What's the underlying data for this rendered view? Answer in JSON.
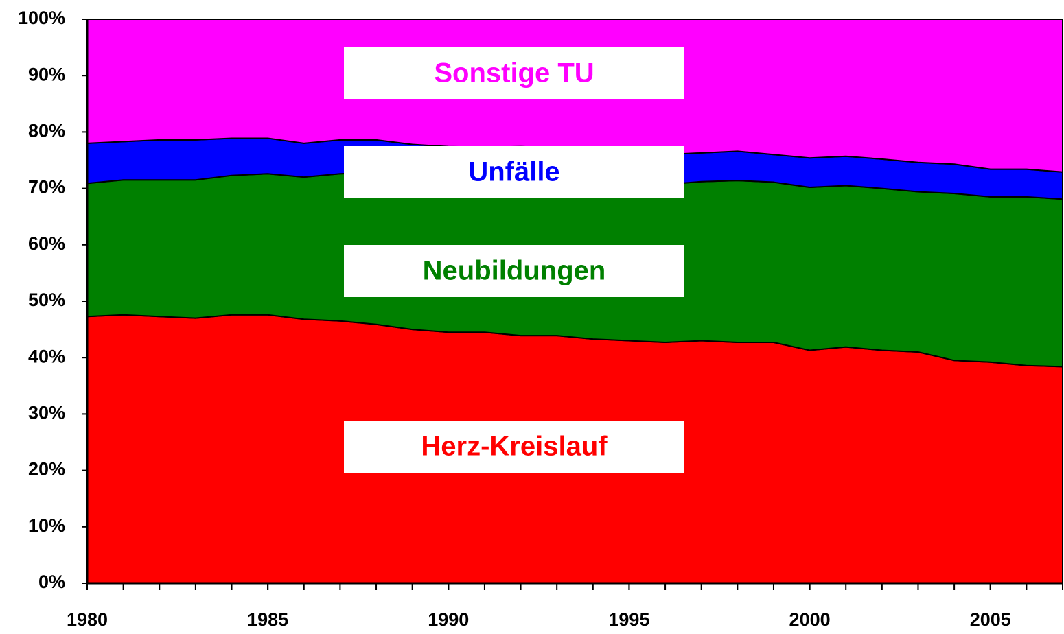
{
  "chart_data": {
    "type": "stacked_area",
    "x": [
      1980,
      1981,
      1982,
      1983,
      1984,
      1985,
      1986,
      1987,
      1988,
      1989,
      1990,
      1991,
      1992,
      1993,
      1994,
      1995,
      1996,
      1997,
      1998,
      1999,
      2000,
      2001,
      2002,
      2003,
      2004,
      2005,
      2006,
      2007
    ],
    "series": [
      {
        "name": "Herz-Kreislauf",
        "color": "#ff0000",
        "values": [
          47.3,
          47.6,
          47.3,
          47.0,
          47.6,
          47.6,
          46.8,
          46.5,
          45.9,
          45.0,
          44.5,
          44.5,
          43.9,
          43.9,
          43.3,
          43.0,
          42.7,
          43.0,
          42.7,
          42.7,
          41.3,
          41.9,
          41.3,
          41.0,
          39.5,
          39.2,
          38.6,
          38.4
        ]
      },
      {
        "name": "Neubildungen",
        "color": "#008000",
        "values": [
          23.6,
          23.9,
          24.2,
          24.5,
          24.7,
          25.0,
          25.2,
          26.1,
          26.9,
          27.2,
          27.3,
          27.0,
          27.3,
          27.1,
          27.5,
          27.6,
          28.0,
          28.2,
          28.7,
          28.4,
          28.9,
          28.6,
          28.7,
          28.4,
          29.6,
          29.3,
          29.9,
          29.7
        ]
      },
      {
        "name": "Unfälle",
        "color": "#0000ff",
        "values": [
          7.1,
          6.8,
          7.1,
          7.1,
          6.6,
          6.3,
          6.0,
          6.0,
          5.8,
          5.6,
          5.6,
          5.8,
          6.2,
          6.2,
          6.2,
          6.0,
          5.3,
          5.1,
          5.2,
          4.9,
          5.2,
          5.2,
          5.2,
          5.2,
          5.2,
          4.9,
          4.9,
          4.8
        ]
      },
      {
        "name": "Sonstige TU",
        "color": "#ff00ff",
        "values": [
          22.0,
          21.7,
          21.4,
          21.4,
          21.1,
          21.1,
          22.0,
          21.4,
          21.4,
          22.2,
          22.6,
          22.7,
          22.6,
          22.8,
          23.0,
          23.4,
          24.0,
          23.7,
          23.4,
          24.0,
          24.6,
          24.3,
          24.8,
          25.4,
          25.7,
          26.6,
          26.6,
          27.1
        ]
      }
    ],
    "xlim": [
      1980,
      2007
    ],
    "xticks": [
      1980,
      1985,
      1990,
      1995,
      2000,
      2005
    ],
    "ylim": [
      0,
      100
    ],
    "yticks": [
      {
        "value": 0,
        "label": "0%"
      },
      {
        "value": 10,
        "label": "10%"
      },
      {
        "value": 20,
        "label": "20%"
      },
      {
        "value": 30,
        "label": "30%"
      },
      {
        "value": 40,
        "label": "40%"
      },
      {
        "value": 50,
        "label": "50%"
      },
      {
        "value": 60,
        "label": "60%"
      },
      {
        "value": 70,
        "label": "70%"
      },
      {
        "value": 80,
        "label": "80%"
      },
      {
        "value": 90,
        "label": "90%"
      },
      {
        "value": 100,
        "label": "100%"
      }
    ]
  }
}
